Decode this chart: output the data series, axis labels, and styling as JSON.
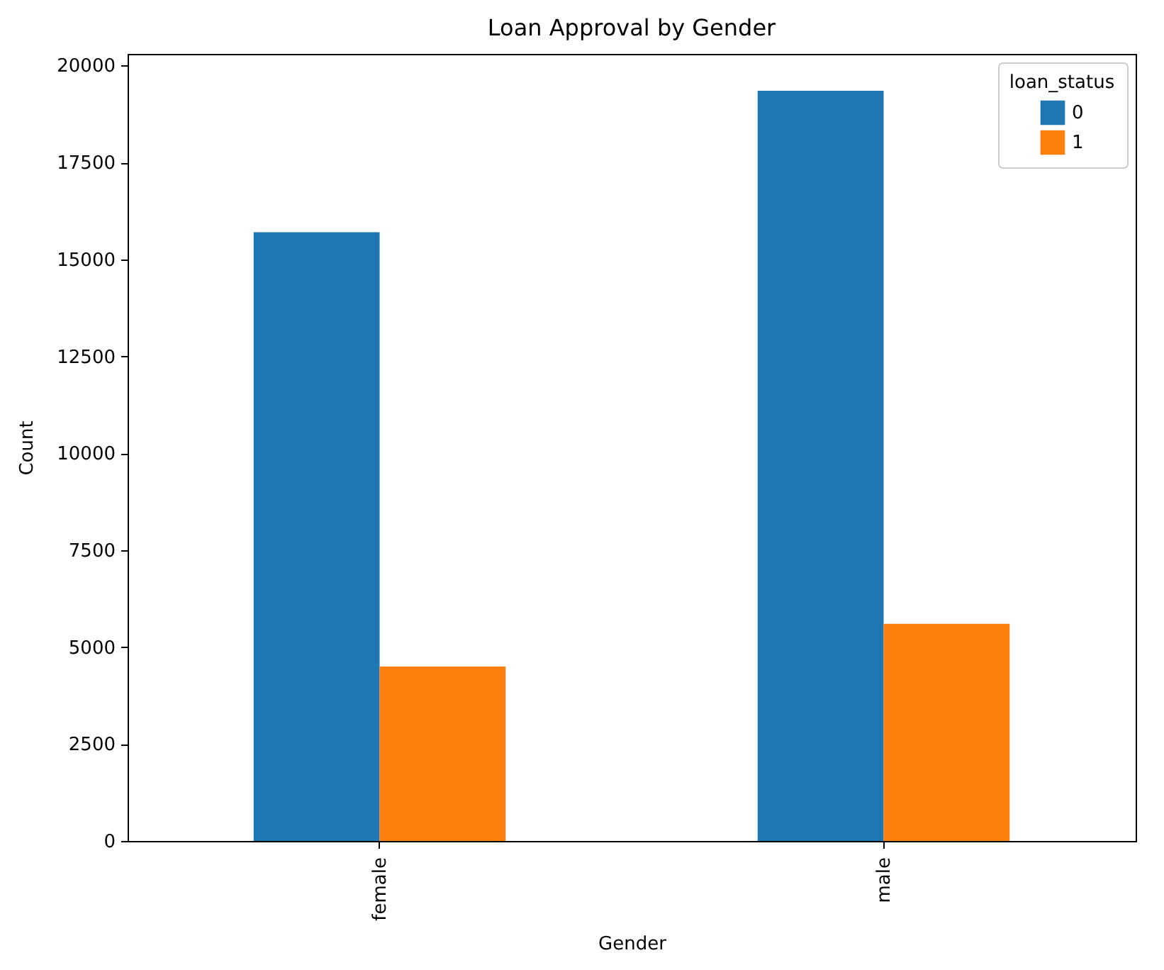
{
  "chart_data": {
    "type": "bar",
    "title": "Loan Approval by Gender",
    "xlabel": "Gender",
    "ylabel": "Count",
    "legend_title": "loan_status",
    "categories": [
      "female",
      "male"
    ],
    "series": [
      {
        "name": "0",
        "color": "#1f77b4",
        "values": [
          15700,
          19350
        ]
      },
      {
        "name": "1",
        "color": "#ff7f0e",
        "values": [
          4500,
          5600
        ]
      }
    ],
    "ylim": [
      0,
      20300
    ],
    "yticks": [
      0,
      2500,
      5000,
      7500,
      10000,
      12500,
      15000,
      17500,
      20000
    ],
    "grid": false,
    "legend": "top right"
  }
}
